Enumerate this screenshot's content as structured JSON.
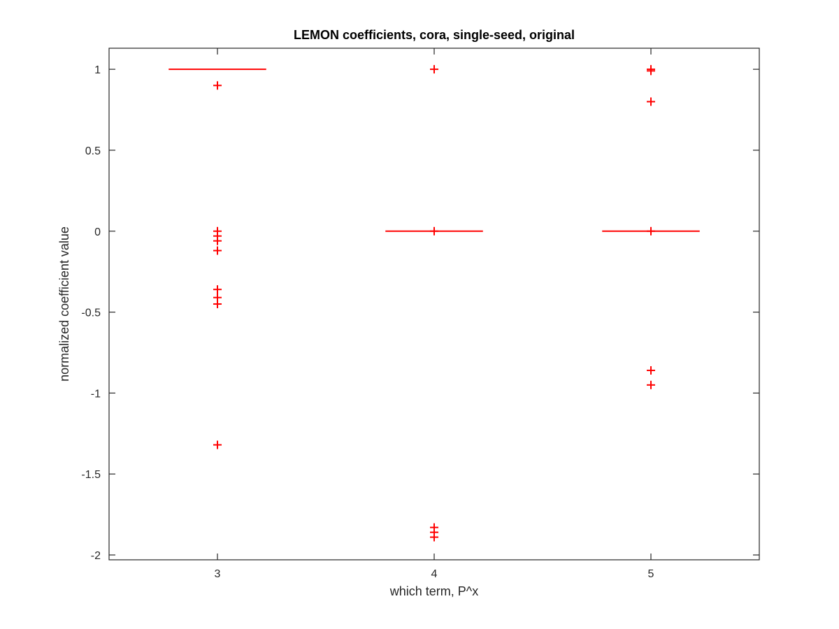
{
  "chart_data": {
    "type": "box",
    "title": "LEMON coefficients, cora, single-seed, original",
    "xlabel": "which term, P^x",
    "ylabel": "normalized coefficient value",
    "xlim": [
      2.5,
      5.5
    ],
    "ylim": [
      -2.03,
      1.13
    ],
    "x_ticks": [
      "3",
      "4",
      "5"
    ],
    "y_ticks": [
      "-2",
      "-1.5",
      "-1",
      "-0.5",
      "0",
      "0.5",
      "1"
    ],
    "grid": false,
    "color": "#ff0000",
    "axis_color": "#262626",
    "groups": [
      {
        "x": 3,
        "median": 1,
        "outliers": [
          0.9,
          0.0,
          -0.03,
          -0.06,
          -0.12,
          -0.36,
          -0.41,
          -0.45,
          -1.32
        ]
      },
      {
        "x": 4,
        "median": 0,
        "outliers": [
          1.0,
          0.0,
          -1.83,
          -1.86,
          -1.89
        ]
      },
      {
        "x": 5,
        "median": 0,
        "outliers": [
          1.0,
          0.99,
          0.8,
          0.0,
          -0.86,
          -0.95
        ]
      }
    ]
  }
}
